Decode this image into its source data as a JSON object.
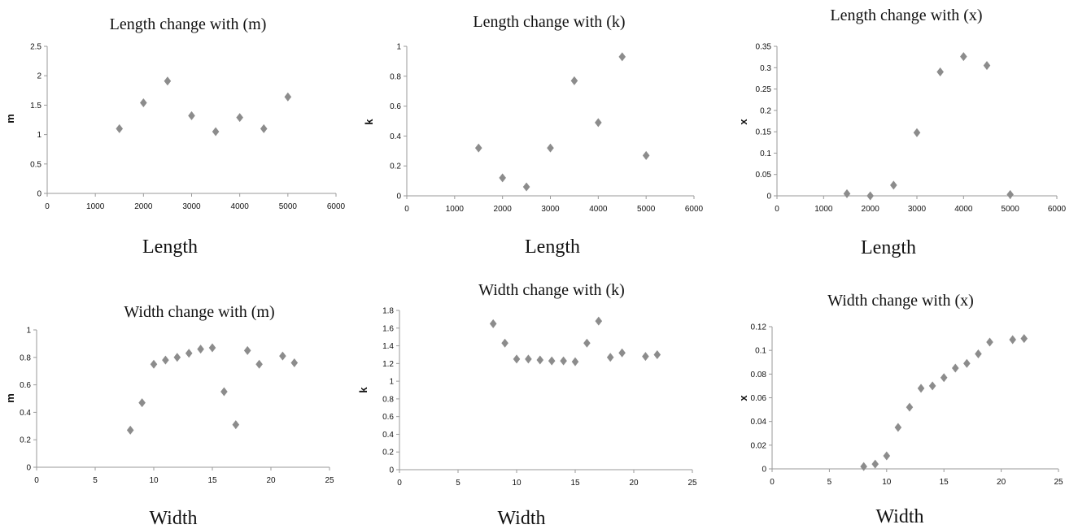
{
  "chart_data": [
    {
      "type": "scatter",
      "title": "Length change with (m)",
      "xlabel": "Length",
      "ylabel": "m",
      "xlim": [
        0,
        6000
      ],
      "ylim": [
        0,
        2.5
      ],
      "xticks": [
        0,
        1000,
        2000,
        3000,
        4000,
        5000,
        6000
      ],
      "yticks": [
        0,
        0.5,
        1,
        1.5,
        2,
        2.5
      ],
      "grid": false,
      "x": [
        1500,
        2000,
        2500,
        3000,
        3500,
        4000,
        4500,
        5000
      ],
      "y": [
        1.1,
        1.54,
        1.91,
        1.32,
        1.05,
        1.29,
        1.1,
        1.64
      ]
    },
    {
      "type": "scatter",
      "title": "Length change with (k)",
      "xlabel": "Length",
      "ylabel": "k",
      "xlim": [
        0,
        6000
      ],
      "ylim": [
        0,
        1
      ],
      "xticks": [
        0,
        1000,
        2000,
        3000,
        4000,
        5000,
        6000
      ],
      "yticks": [
        0,
        0.2,
        0.4,
        0.6,
        0.8,
        1
      ],
      "grid": false,
      "x": [
        1500,
        2000,
        2500,
        3000,
        3500,
        4000,
        4500,
        5000
      ],
      "y": [
        0.32,
        0.12,
        0.06,
        0.32,
        0.77,
        0.49,
        0.93,
        0.27
      ]
    },
    {
      "type": "scatter",
      "title": "Length change with (x)",
      "xlabel": "Length",
      "ylabel": "x",
      "xlim": [
        0,
        6000
      ],
      "ylim": [
        0,
        0.35
      ],
      "xticks": [
        0,
        1000,
        2000,
        3000,
        4000,
        5000,
        6000
      ],
      "yticks": [
        0,
        0.05,
        0.1,
        0.15,
        0.2,
        0.25,
        0.3,
        0.35
      ],
      "grid": false,
      "x": [
        1500,
        2000,
        2500,
        3000,
        3500,
        4000,
        4500,
        5000
      ],
      "y": [
        0.005,
        0.0,
        0.025,
        0.148,
        0.29,
        0.326,
        0.305,
        0.003
      ]
    },
    {
      "type": "scatter",
      "title": "Width change with (m)",
      "xlabel": "Width",
      "ylabel": "m",
      "xlim": [
        0,
        25
      ],
      "ylim": [
        0,
        1
      ],
      "xticks": [
        0,
        5,
        10,
        15,
        20,
        25
      ],
      "yticks": [
        0,
        0.2,
        0.4,
        0.6,
        0.8,
        1
      ],
      "grid": false,
      "x": [
        8,
        9,
        10,
        11,
        12,
        13,
        14,
        15,
        16,
        17,
        18,
        19,
        21,
        22
      ],
      "y": [
        0.27,
        0.47,
        0.75,
        0.78,
        0.8,
        0.83,
        0.86,
        0.87,
        0.55,
        0.31,
        0.85,
        0.75,
        0.81,
        0.76
      ]
    },
    {
      "type": "scatter",
      "title": "Width change with (k)",
      "xlabel": "Width",
      "ylabel": "k",
      "xlim": [
        0,
        25
      ],
      "ylim": [
        0,
        1.8
      ],
      "xticks": [
        0,
        5,
        10,
        15,
        20,
        25
      ],
      "yticks": [
        0,
        0.2,
        0.4,
        0.6,
        0.8,
        1,
        1.2,
        1.4,
        1.6,
        1.8
      ],
      "grid": false,
      "x": [
        8,
        9,
        10,
        11,
        12,
        13,
        14,
        15,
        16,
        17,
        18,
        19,
        21,
        22
      ],
      "y": [
        1.65,
        1.43,
        1.25,
        1.25,
        1.24,
        1.23,
        1.23,
        1.22,
        1.43,
        1.68,
        1.27,
        1.32,
        1.28,
        1.3
      ]
    },
    {
      "type": "scatter",
      "title": "Width change with (x)",
      "xlabel": "Width",
      "ylabel": "x",
      "xlim": [
        0,
        25
      ],
      "ylim": [
        0,
        0.12
      ],
      "xticks": [
        0,
        5,
        10,
        15,
        20,
        25
      ],
      "yticks": [
        0,
        0.02,
        0.04,
        0.06,
        0.08,
        0.1,
        0.12
      ],
      "grid": false,
      "x": [
        8,
        9,
        10,
        11,
        12,
        13,
        14,
        15,
        16,
        17,
        18,
        19,
        21,
        22
      ],
      "y": [
        0.002,
        0.004,
        0.011,
        0.035,
        0.052,
        0.068,
        0.07,
        0.077,
        0.085,
        0.089,
        0.097,
        0.107,
        0.109,
        0.11
      ]
    }
  ]
}
